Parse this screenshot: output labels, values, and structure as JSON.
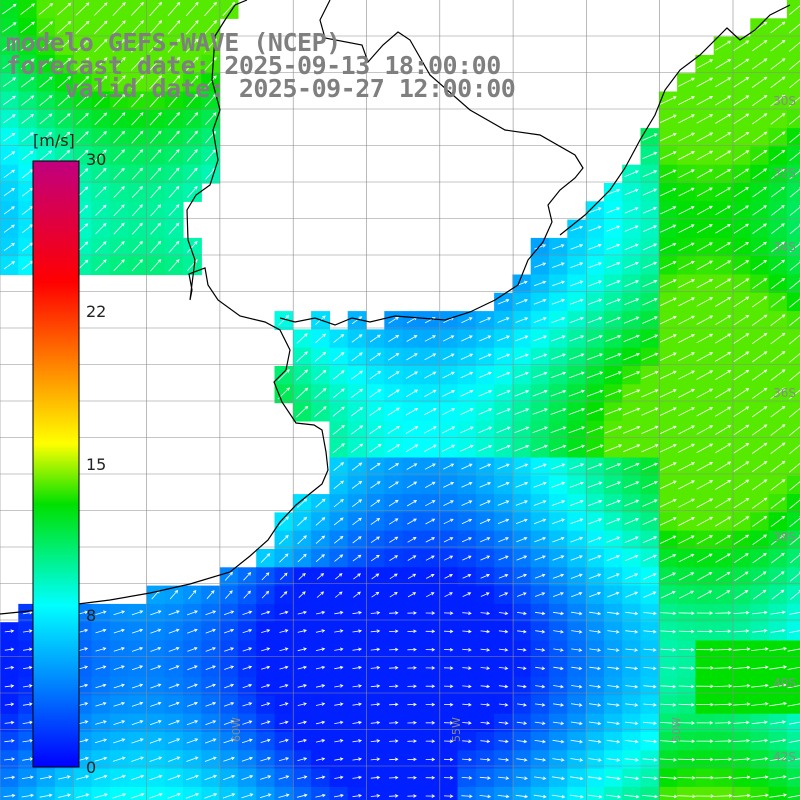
{
  "title": {
    "model": "modelo GEFS-WAVE (NCEP)",
    "forecast": "forecast date: 2025-09-13 18:00:00",
    "valid": "    valid date: 2025-09-27 12:00:00"
  },
  "colorbar": {
    "unit": "[m/s]",
    "ticks": [
      "30",
      "22",
      "15",
      "8",
      "0"
    ],
    "tick_values": [
      30,
      22,
      15,
      8,
      0
    ],
    "colors": [
      "#0000ff",
      "#00ffff",
      "#00e000",
      "#ffff00",
      "#ff8000",
      "#ff0000",
      "#c00080"
    ],
    "color_stops_value": [
      0,
      8,
      13,
      16,
      20,
      24,
      30
    ]
  },
  "map": {
    "lat_labels": [
      "30S",
      "32S",
      "34S",
      "36S",
      "38S",
      "40S",
      "42S"
    ],
    "lon_labels": [
      "60W",
      "55W",
      "50W"
    ],
    "land_color": "#ffffff",
    "grid_color": "#8c8c8c",
    "arrow_color": "#ffffff"
  }
}
